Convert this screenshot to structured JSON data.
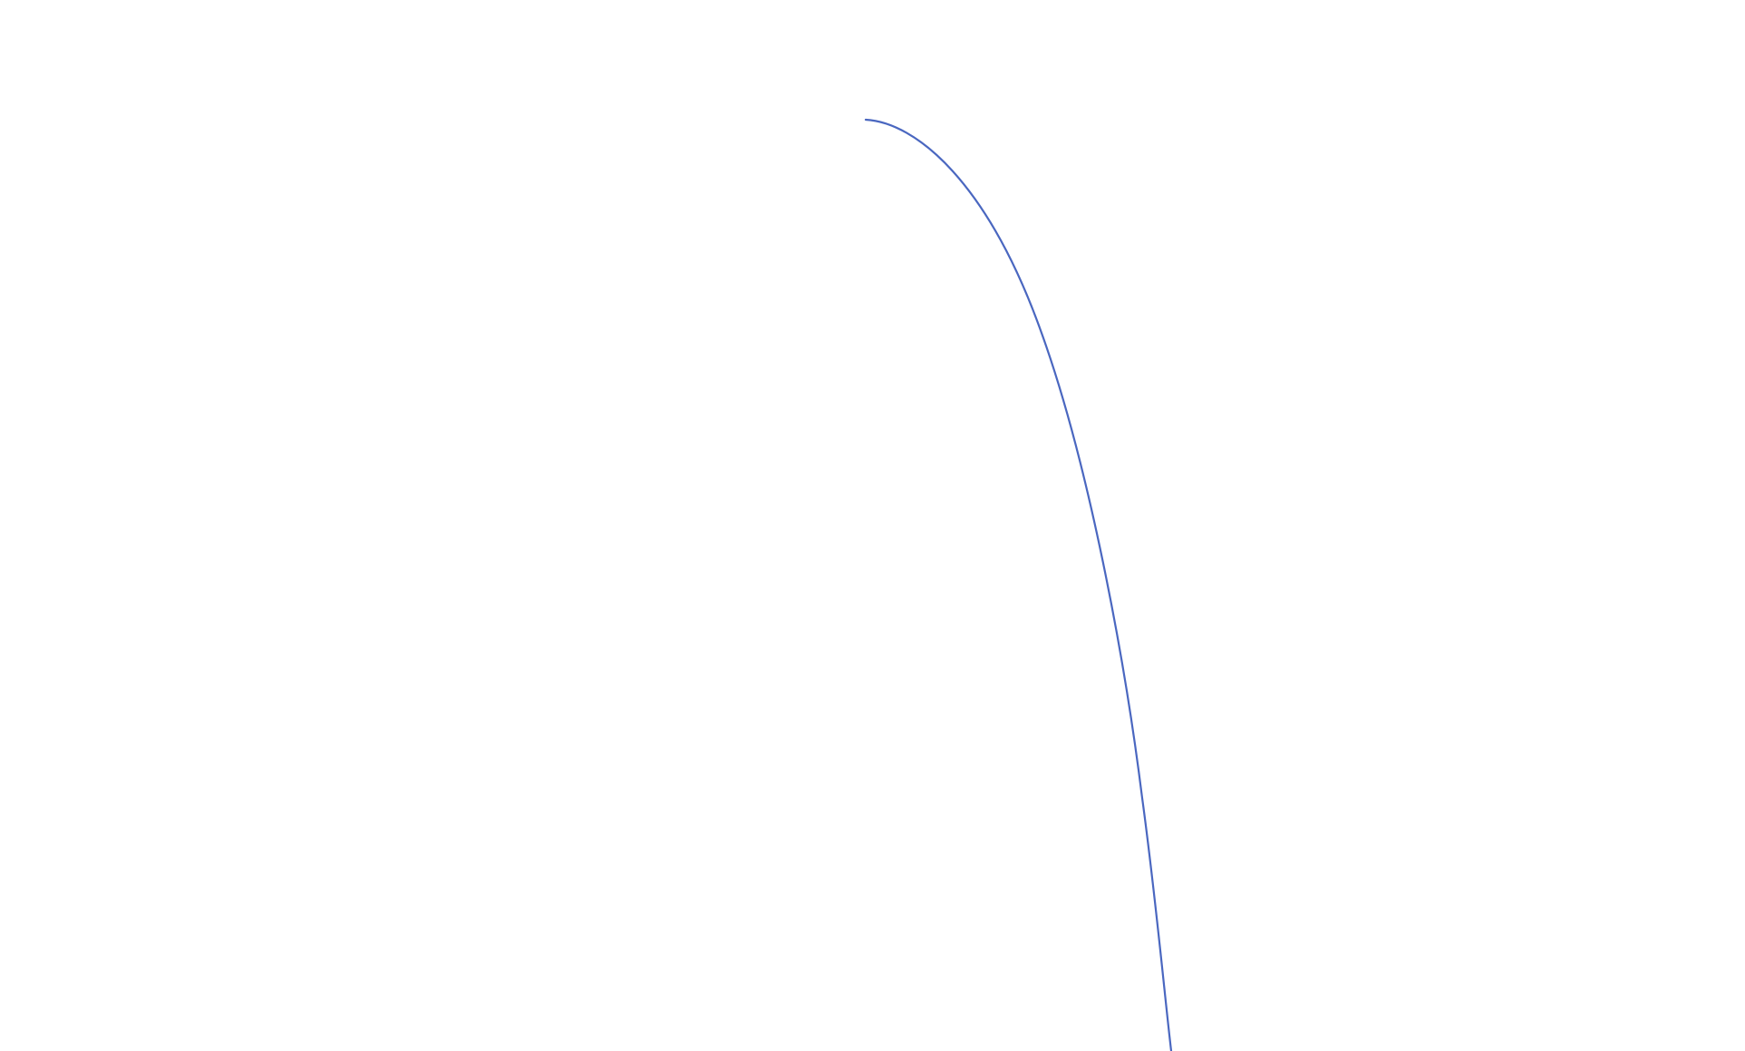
{
  "curve": {
    "stroke_color": "#4a67c0",
    "background_color": "#ffffff"
  }
}
